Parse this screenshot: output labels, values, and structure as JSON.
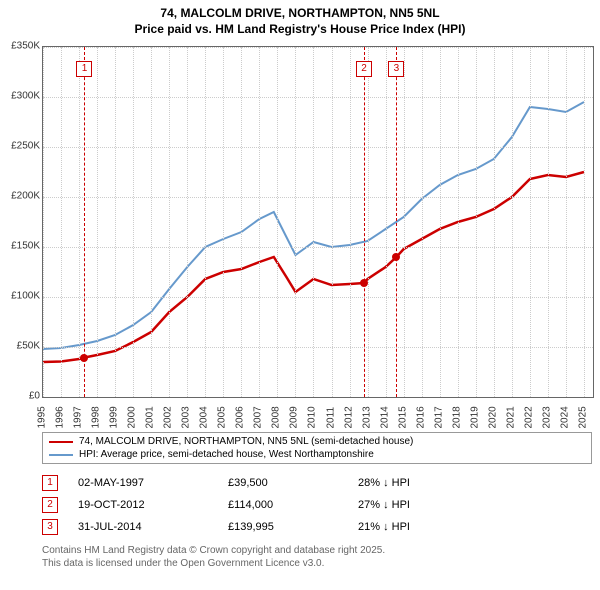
{
  "title_line1": "74, MALCOLM DRIVE, NORTHAMPTON, NN5 5NL",
  "title_line2": "Price paid vs. HM Land Registry's House Price Index (HPI)",
  "chart": {
    "type": "line",
    "background_color": "#ffffff",
    "grid_color": "#cccccc",
    "border_color": "#666666",
    "x_years": [
      1995,
      1996,
      1997,
      1998,
      1999,
      2000,
      2001,
      2002,
      2003,
      2004,
      2005,
      2006,
      2007,
      2008,
      2009,
      2010,
      2011,
      2012,
      2013,
      2014,
      2015,
      2016,
      2017,
      2018,
      2019,
      2020,
      2021,
      2022,
      2023,
      2024,
      2025
    ],
    "y_ticks": [
      0,
      50000,
      100000,
      150000,
      200000,
      250000,
      300000,
      350000
    ],
    "y_tick_labels": [
      "£0",
      "£50K",
      "£100K",
      "£150K",
      "£200K",
      "£250K",
      "£300K",
      "£350K"
    ],
    "ylim": [
      0,
      350000
    ],
    "xlim": [
      1995,
      2025.5
    ],
    "series": [
      {
        "name": "property",
        "label": "74, MALCOLM DRIVE, NORTHAMPTON, NN5 5NL (semi-detached house)",
        "color": "#cc0000",
        "line_width": 2.5,
        "data": [
          [
            1995,
            35000
          ],
          [
            1996,
            35500
          ],
          [
            1997,
            38000
          ],
          [
            1997.3,
            39500
          ],
          [
            1998,
            42000
          ],
          [
            1999,
            46000
          ],
          [
            2000,
            55000
          ],
          [
            2001,
            65000
          ],
          [
            2002,
            85000
          ],
          [
            2003,
            100000
          ],
          [
            2004,
            118000
          ],
          [
            2005,
            125000
          ],
          [
            2006,
            128000
          ],
          [
            2007,
            135000
          ],
          [
            2007.8,
            140000
          ],
          [
            2008.5,
            120000
          ],
          [
            2009,
            105000
          ],
          [
            2010,
            118000
          ],
          [
            2011,
            112000
          ],
          [
            2012,
            113000
          ],
          [
            2012.8,
            114000
          ],
          [
            2013,
            118000
          ],
          [
            2014,
            130000
          ],
          [
            2014.6,
            139995
          ],
          [
            2015,
            148000
          ],
          [
            2016,
            158000
          ],
          [
            2017,
            168000
          ],
          [
            2018,
            175000
          ],
          [
            2019,
            180000
          ],
          [
            2020,
            188000
          ],
          [
            2021,
            200000
          ],
          [
            2022,
            218000
          ],
          [
            2023,
            222000
          ],
          [
            2024,
            220000
          ],
          [
            2025,
            225000
          ]
        ]
      },
      {
        "name": "hpi",
        "label": "HPI: Average price, semi-detached house, West Northamptonshire",
        "color": "#6699cc",
        "line_width": 2,
        "data": [
          [
            1995,
            48000
          ],
          [
            1996,
            49000
          ],
          [
            1997,
            52000
          ],
          [
            1998,
            56000
          ],
          [
            1999,
            62000
          ],
          [
            2000,
            72000
          ],
          [
            2001,
            85000
          ],
          [
            2002,
            108000
          ],
          [
            2003,
            130000
          ],
          [
            2004,
            150000
          ],
          [
            2005,
            158000
          ],
          [
            2006,
            165000
          ],
          [
            2007,
            178000
          ],
          [
            2007.8,
            185000
          ],
          [
            2008.5,
            160000
          ],
          [
            2009,
            142000
          ],
          [
            2010,
            155000
          ],
          [
            2011,
            150000
          ],
          [
            2012,
            152000
          ],
          [
            2013,
            156000
          ],
          [
            2014,
            168000
          ],
          [
            2015,
            180000
          ],
          [
            2016,
            198000
          ],
          [
            2017,
            212000
          ],
          [
            2018,
            222000
          ],
          [
            2019,
            228000
          ],
          [
            2020,
            238000
          ],
          [
            2021,
            260000
          ],
          [
            2022,
            290000
          ],
          [
            2023,
            288000
          ],
          [
            2024,
            285000
          ],
          [
            2025,
            295000
          ]
        ]
      }
    ],
    "markers": [
      {
        "n": "1",
        "year": 1997.3,
        "price": 39500
      },
      {
        "n": "2",
        "year": 2012.8,
        "price": 114000
      },
      {
        "n": "3",
        "year": 2014.6,
        "price": 139995
      }
    ],
    "marker_color": "#cc0000"
  },
  "legend": {
    "border_color": "#999999"
  },
  "sales": [
    {
      "n": "1",
      "date": "02-MAY-1997",
      "price": "£39,500",
      "diff": "28% ↓ HPI"
    },
    {
      "n": "2",
      "date": "19-OCT-2012",
      "price": "£114,000",
      "diff": "27% ↓ HPI"
    },
    {
      "n": "3",
      "date": "31-JUL-2014",
      "price": "£139,995",
      "diff": "21% ↓ HPI"
    }
  ],
  "attribution_line1": "Contains HM Land Registry data © Crown copyright and database right 2025.",
  "attribution_line2": "This data is licensed under the Open Government Licence v3.0."
}
